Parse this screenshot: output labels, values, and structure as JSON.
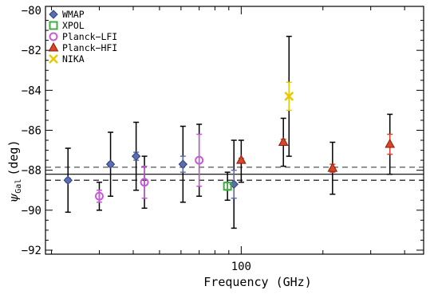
{
  "chart_data": {
    "type": "scatter",
    "xlabel": "Frequency (GHz)",
    "ylabel": "ψGal (deg)",
    "ylabel_main": "ψ",
    "ylabel_sub": "Gal",
    "ylabel_unit": "(deg)",
    "x_scale": "log",
    "xlim": [
      19,
      470
    ],
    "ylim": [
      -92.2,
      -79.8
    ],
    "x_ticks": [
      {
        "value": 100,
        "label": "100"
      }
    ],
    "y_ticks": [
      {
        "value": -80,
        "label": "−80"
      },
      {
        "value": -82,
        "label": "−82"
      },
      {
        "value": -84,
        "label": "−84"
      },
      {
        "value": -86,
        "label": "−86"
      },
      {
        "value": -88,
        "label": "−88"
      },
      {
        "value": -90,
        "label": "−90"
      },
      {
        "value": -92,
        "label": "−92"
      }
    ],
    "grid": false,
    "legend_position": "top-left",
    "series": [
      {
        "name": "WMAP",
        "marker": "diamond",
        "color": "#5b6fb0",
        "points": [
          {
            "x": 23,
            "y": -88.5,
            "err_lo": 0.1,
            "err_hi": 0.1,
            "sys_lo": -90.1,
            "sys_hi": -86.9
          },
          {
            "x": 33,
            "y": -87.7,
            "err_lo": 0.1,
            "err_hi": 0.1,
            "sys_lo": -89.3,
            "sys_hi": -86.1
          },
          {
            "x": 41,
            "y": -87.3,
            "err_lo": 0.2,
            "err_hi": 0.2,
            "sys_lo": -89.0,
            "sys_hi": -85.6
          },
          {
            "x": 61,
            "y": -87.7,
            "err_lo": 0.4,
            "err_hi": 0.4,
            "sys_lo": -89.6,
            "sys_hi": -85.8
          },
          {
            "x": 94,
            "y": -88.7,
            "err_lo": 0.7,
            "err_hi": 0.7,
            "sys_lo": -90.9,
            "sys_hi": -86.5
          }
        ]
      },
      {
        "name": "XPOL",
        "marker": "square",
        "color": "#3fae3f",
        "points": [
          {
            "x": 89,
            "y": -88.8,
            "err_lo": 0.2,
            "err_hi": 0.2,
            "sys_lo": -89.5,
            "sys_hi": -88.1
          }
        ]
      },
      {
        "name": "Planck−LFI",
        "marker": "circle",
        "color": "#c65ad8",
        "points": [
          {
            "x": 30,
            "y": -89.3,
            "err_lo": 0.3,
            "err_hi": 0.3,
            "sys_lo": -90.0,
            "sys_hi": -88.6
          },
          {
            "x": 44,
            "y": -88.6,
            "err_lo": 0.8,
            "err_hi": 0.8,
            "sys_lo": -89.9,
            "sys_hi": -87.3
          },
          {
            "x": 70,
            "y": -87.5,
            "err_lo": 1.3,
            "err_hi": 1.3,
            "sys_lo": -89.3,
            "sys_hi": -85.7
          }
        ]
      },
      {
        "name": "Planck−HFI",
        "marker": "triangle",
        "color": "#d9452b",
        "points": [
          {
            "x": 100,
            "y": -87.5,
            "err_lo": 0.1,
            "err_hi": 0.1,
            "sys_lo": -88.6,
            "sys_hi": -86.5
          },
          {
            "x": 143,
            "y": -86.6,
            "err_lo": 0.15,
            "err_hi": 0.15,
            "sys_lo": -87.8,
            "sys_hi": -85.4
          },
          {
            "x": 217,
            "y": -87.9,
            "err_lo": 0.2,
            "err_hi": 0.2,
            "sys_lo": -89.2,
            "sys_hi": -86.6
          },
          {
            "x": 353,
            "y": -86.7,
            "err_lo": 0.5,
            "err_hi": 0.5,
            "sys_lo": -88.2,
            "sys_hi": -85.2
          }
        ]
      },
      {
        "name": "NIKA",
        "marker": "x",
        "color": "#e8c800",
        "points": [
          {
            "x": 150,
            "y": -84.3,
            "err_lo": 0.7,
            "err_hi": 0.7,
            "sys_lo": -87.3,
            "sys_hi": -81.3
          }
        ]
      }
    ],
    "reference_lines": [
      {
        "style": "solid",
        "y": -88.2,
        "color": "#000000"
      },
      {
        "style": "dashed",
        "y": -87.85,
        "color": "#555555"
      },
      {
        "style": "dashed",
        "y": -88.5,
        "color": "#000000"
      }
    ]
  }
}
